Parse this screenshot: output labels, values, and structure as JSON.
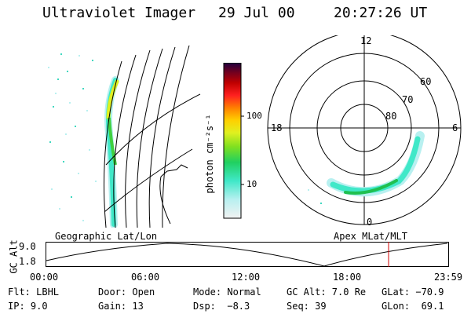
{
  "header": {
    "instrument": "Ultraviolet Imager",
    "date": "29 Jul 00",
    "time": "20:27:26 UT"
  },
  "colorbar": {
    "unit_label": "photon cm⁻²s⁻¹",
    "ticks": [
      "100",
      "10"
    ],
    "colors": [
      "#f2f2f2",
      "#b8f0f0",
      "#40e8c8",
      "#20d060",
      "#80e020",
      "#e0f020",
      "#ffd000",
      "#ff8000",
      "#ff2020",
      "#c00000",
      "#700020",
      "#200040"
    ]
  },
  "polar": {
    "mlt_labels": {
      "top": "12",
      "left": "18",
      "right": "6",
      "bottom": "0"
    },
    "lat_labels": [
      "60",
      "70",
      "80"
    ]
  },
  "timeline": {
    "left_label": "Geographic Lat/Lon",
    "right_label": "Apex MLat/MLT",
    "axis_title": "GC Alt",
    "y_ticks": [
      "9.0",
      "1.8"
    ],
    "x_ticks": [
      "00:00",
      "06:00",
      "12:00",
      "18:00",
      "23:59"
    ],
    "marker_color": "#d00000"
  },
  "info": {
    "row1": {
      "filter": "Flt: LBHL",
      "door": "Door: Open",
      "mode": "Mode: Normal",
      "gc_alt": "GC Alt: 7.0 Re",
      "glat": "GLat: −70.9"
    },
    "row2": {
      "ip": "IP: 9.0",
      "gain": "Gain: 13",
      "dsp": "Dsp:  −8.3",
      "seq": "Seq: 39",
      "glon": "GLon:  69.1"
    }
  }
}
